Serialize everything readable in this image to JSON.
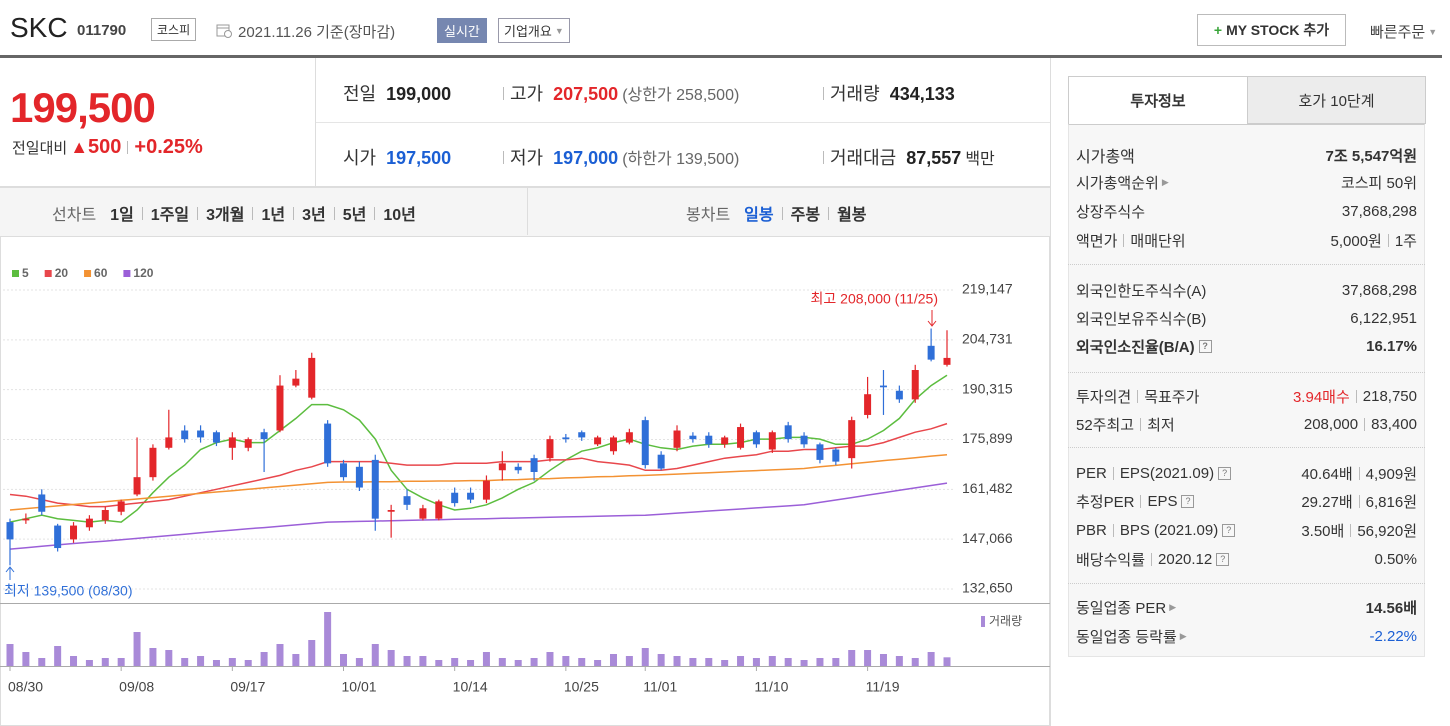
{
  "header": {
    "name": "SKC",
    "code": "011790",
    "market": "코스피",
    "date": "2021.11.26 기준(장마감)",
    "realtime": "실시간",
    "company": "기업개요",
    "mystock": "MY STOCK 추가",
    "quick_order": "빠른주문"
  },
  "quote": {
    "price": "199,500",
    "change_label": "전일대비",
    "change": "500",
    "change_pct": "+0.25%",
    "items": [
      {
        "label": "전일",
        "value": "199,000"
      },
      {
        "label": "고가",
        "value": "207,500",
        "note": "(상한가 258,500)"
      },
      {
        "label": "거래량",
        "value": "434,133"
      },
      {
        "label": "시가",
        "value": "197,500"
      },
      {
        "label": "저가",
        "value": "197,000",
        "note": "(하한가 139,500)"
      },
      {
        "label": "거래대금",
        "value": "87,557",
        "unit": "백만"
      }
    ]
  },
  "toolbar": {
    "line_label": "선차트",
    "line_periods": [
      "1일",
      "1주일",
      "3개월",
      "1년",
      "3년",
      "5년",
      "10년"
    ],
    "candle_label": "봉차트",
    "candle_periods": [
      "일봉",
      "주봉",
      "월봉"
    ]
  },
  "chart_data": {
    "type": "candlestick",
    "categories": [
      "08/30",
      null,
      null,
      null,
      null,
      null,
      null,
      "09/08",
      null,
      null,
      null,
      null,
      null,
      null,
      "09/17",
      null,
      null,
      null,
      null,
      null,
      null,
      "10/01",
      null,
      null,
      null,
      null,
      null,
      null,
      "10/14",
      null,
      null,
      null,
      null,
      null,
      null,
      "10/25",
      null,
      null,
      null,
      null,
      "11/01",
      null,
      null,
      null,
      null,
      null,
      null,
      "11/10",
      null,
      null,
      null,
      null,
      null,
      null,
      "11/19",
      null,
      null,
      null,
      null,
      null
    ],
    "open": [
      152000,
      152500,
      160000,
      151000,
      147000,
      150500,
      152500,
      155000,
      160000,
      165000,
      173500,
      178500,
      178500,
      178000,
      173500,
      173500,
      178000,
      178500,
      191500,
      188000,
      180500,
      169000,
      168000,
      170000,
      155000,
      159500,
      153000,
      153000,
      160500,
      160500,
      158500,
      167000,
      168000,
      170500,
      170500,
      176500,
      178000,
      174500,
      172500,
      175000,
      181500,
      171500,
      173500,
      177000,
      177000,
      174500,
      173500,
      178000,
      173000,
      180000,
      177000,
      174500,
      173000,
      170500,
      183000,
      191500,
      190000,
      187500,
      203000,
      197500
    ],
    "high": [
      153000,
      154500,
      161500,
      151500,
      152000,
      154000,
      156500,
      158500,
      176500,
      174500,
      184500,
      180000,
      180000,
      178500,
      178000,
      176500,
      179000,
      194500,
      196000,
      201000,
      181500,
      170000,
      169500,
      171500,
      157000,
      161500,
      157000,
      158500,
      162000,
      162000,
      165500,
      172500,
      169000,
      171500,
      177000,
      177500,
      178500,
      177000,
      177000,
      179000,
      182500,
      172500,
      180000,
      178000,
      178000,
      177000,
      180500,
      178500,
      178500,
      181000,
      178000,
      175000,
      173500,
      182500,
      194000,
      196000,
      191500,
      197500,
      208000,
      207500
    ],
    "low": [
      139500,
      151500,
      154000,
      143500,
      146000,
      149500,
      151500,
      154000,
      159500,
      164000,
      173000,
      175000,
      175000,
      174000,
      170000,
      172500,
      166500,
      178000,
      191000,
      187500,
      168000,
      164000,
      161000,
      149500,
      147500,
      155500,
      152500,
      152500,
      156500,
      157500,
      157500,
      164000,
      166000,
      164000,
      169500,
      175000,
      175500,
      174000,
      171500,
      174500,
      167500,
      167000,
      172500,
      175000,
      173500,
      173500,
      173000,
      173500,
      172000,
      175000,
      173500,
      169000,
      168500,
      167500,
      182000,
      183000,
      186500,
      186500,
      198500,
      197000
    ],
    "close": [
      147000,
      153000,
      155000,
      144500,
      151000,
      153000,
      155500,
      158000,
      165000,
      173500,
      176500,
      176000,
      176500,
      175000,
      176500,
      176000,
      176000,
      191500,
      193500,
      199500,
      169000,
      165000,
      162000,
      153000,
      155500,
      157000,
      156000,
      158000,
      157500,
      158500,
      164000,
      169000,
      167000,
      166500,
      176000,
      176000,
      176500,
      176500,
      176500,
      178000,
      168500,
      167500,
      178500,
      176000,
      174500,
      176500,
      179500,
      174500,
      178000,
      176000,
      174500,
      170000,
      169500,
      181500,
      189000,
      191000,
      187500,
      196000,
      199000,
      199500
    ],
    "up_color": "#e3262a",
    "down_color": "#2f6fd8",
    "series": [
      {
        "name": "5",
        "color": "#5cbd3f",
        "values": [
          152000,
          153000,
          154000,
          153000,
          152500,
          152000,
          152500,
          152000,
          155500,
          160500,
          165000,
          168500,
          173000,
          175000,
          176000,
          175000,
          175000,
          178500,
          182000,
          186000,
          186000,
          184500,
          181500,
          176000,
          167000,
          161500,
          159000,
          157000,
          155500,
          156000,
          157000,
          159000,
          161500,
          163500,
          167000,
          170000,
          172500,
          173500,
          175000,
          176000,
          174500,
          173500,
          173000,
          174000,
          174500,
          174500,
          175000,
          176000,
          176000,
          176500,
          176500,
          176000,
          174500,
          174500,
          176000,
          178500,
          182000,
          187500,
          191500,
          194500
        ]
      },
      {
        "name": "20",
        "color": "#e8474c",
        "values": [
          160000,
          159500,
          158500,
          157500,
          157000,
          156500,
          156500,
          157000,
          157500,
          158000,
          158500,
          159500,
          160500,
          161500,
          162500,
          163500,
          164500,
          165500,
          167000,
          168000,
          169500,
          169500,
          169500,
          169500,
          169000,
          168500,
          168500,
          168500,
          169000,
          169000,
          169000,
          169500,
          169500,
          169500,
          170000,
          170000,
          170500,
          169500,
          169000,
          168500,
          167000,
          167000,
          167500,
          168500,
          169500,
          170500,
          171000,
          171500,
          172500,
          172500,
          173000,
          173000,
          173500,
          174000,
          174000,
          175000,
          176500,
          178000,
          179000,
          180500
        ]
      },
      {
        "name": "60",
        "color": "#f39233",
        "values": [
          155500,
          155900,
          156300,
          156700,
          157100,
          157500,
          157900,
          158300,
          158700,
          159100,
          159500,
          159900,
          160300,
          160700,
          161100,
          161500,
          161900,
          162300,
          162700,
          163100,
          163500,
          163600,
          163600,
          163700,
          163700,
          163800,
          163800,
          163900,
          163900,
          164000,
          164000,
          164200,
          164300,
          164500,
          164600,
          164800,
          164900,
          165100,
          165200,
          165400,
          165500,
          165700,
          165900,
          166100,
          166300,
          166500,
          166700,
          166900,
          167100,
          167300,
          167500,
          168000,
          168400,
          168900,
          169300,
          169800,
          170200,
          170600,
          171100,
          171500
        ]
      },
      {
        "name": "120",
        "color": "#9b5fd8",
        "values": [
          144200,
          144600,
          145000,
          145400,
          145800,
          146200,
          146500,
          146900,
          147300,
          147700,
          148100,
          148500,
          148900,
          149300,
          149700,
          150100,
          150400,
          150800,
          151200,
          151600,
          152000,
          152100,
          152200,
          152300,
          152400,
          152500,
          152600,
          152700,
          152800,
          152900,
          153000,
          153100,
          153200,
          153300,
          153400,
          153500,
          153600,
          153700,
          153800,
          153900,
          154000,
          154300,
          154600,
          154900,
          155200,
          155500,
          155800,
          156100,
          156400,
          156700,
          157000,
          157700,
          158400,
          159100,
          159800,
          160500,
          161200,
          161900,
          162600,
          163300
        ]
      }
    ],
    "ylim": [
      132650,
      219147
    ],
    "yticks": [
      {
        "value": 219147,
        "label": "219,147"
      },
      {
        "value": 204731,
        "label": "204,731"
      },
      {
        "value": 190315,
        "label": "190,315"
      },
      {
        "value": 175899,
        "label": "175,899"
      },
      {
        "value": 161482,
        "label": "161,482"
      },
      {
        "value": 147066,
        "label": "147,066"
      },
      {
        "value": 132650,
        "label": "132,650"
      }
    ],
    "grid": true,
    "annotations": [
      "최고 208,000 (11/25)",
      "최저 139,500 (08/30)"
    ],
    "volume": {
      "name": "거래량",
      "color": "#a98ad8",
      "ylim": [
        0,
        3000000
      ],
      "values": [
        1100000,
        700000,
        400000,
        1000000,
        500000,
        300000,
        400000,
        400000,
        1700000,
        900000,
        800000,
        400000,
        500000,
        300000,
        400000,
        300000,
        700000,
        1100000,
        600000,
        1300000,
        2700000,
        600000,
        400000,
        1100000,
        800000,
        500000,
        500000,
        300000,
        400000,
        300000,
        700000,
        400000,
        300000,
        400000,
        700000,
        500000,
        400000,
        300000,
        600000,
        500000,
        900000,
        600000,
        500000,
        400000,
        400000,
        300000,
        500000,
        400000,
        500000,
        400000,
        300000,
        400000,
        400000,
        800000,
        800000,
        600000,
        500000,
        400000,
        700000,
        434133
      ]
    }
  },
  "info": {
    "tabs": [
      "투자정보",
      "호가 10단계"
    ],
    "rows": [
      {
        "label": "시가총액",
        "value": "7조 5,547억원"
      },
      {
        "label": "시가총액순위",
        "value": "코스피 50위"
      },
      {
        "label": "상장주식수",
        "value": "37,868,298"
      },
      {
        "label": [
          "액면가",
          "매매단위"
        ],
        "value": [
          "5,000원",
          "1주"
        ]
      },
      {
        "label": "외국인한도주식수(A)",
        "value": "37,868,298"
      },
      {
        "label": "외국인보유주식수(B)",
        "value": "6,122,951"
      },
      {
        "label": "외국인소진율(B/A)",
        "value": "16.17%"
      },
      {
        "label": [
          "투자의견",
          "목표주가"
        ],
        "value": [
          "3.94매수",
          "218,750"
        ]
      },
      {
        "label": [
          "52주최고",
          "최저"
        ],
        "value": [
          "208,000",
          "83,400"
        ]
      },
      {
        "label": [
          "PER",
          "EPS(2021.09)"
        ],
        "value": [
          "40.64배",
          "4,909원"
        ]
      },
      {
        "label": [
          "추정PER",
          "EPS"
        ],
        "value": [
          "29.27배",
          "6,816원"
        ]
      },
      {
        "label": [
          "PBR",
          "BPS (2021.09)"
        ],
        "value": [
          "3.50배",
          "56,920원"
        ]
      },
      {
        "label": [
          "배당수익률",
          "2020.12"
        ],
        "value": "0.50%"
      },
      {
        "label": "동일업종 PER",
        "value": "14.56배"
      },
      {
        "label": "동일업종 등락률",
        "value": "-2.22%"
      }
    ]
  }
}
